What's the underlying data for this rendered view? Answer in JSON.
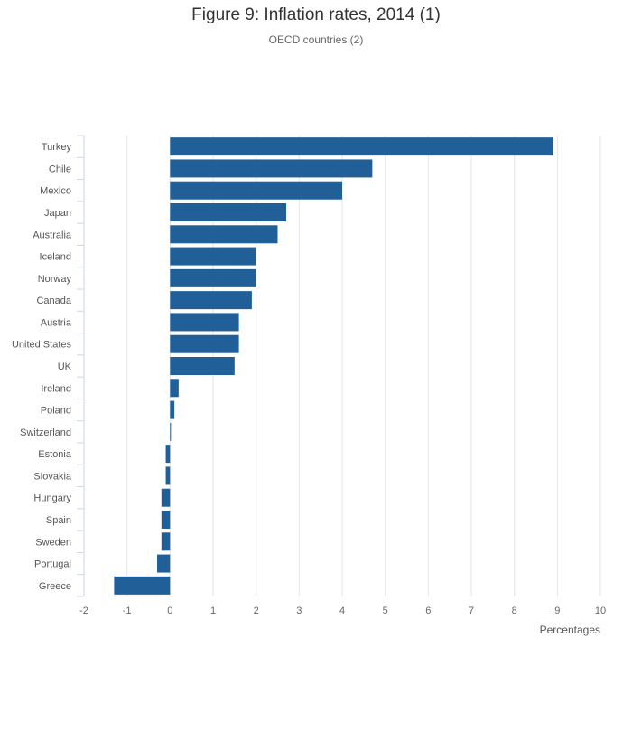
{
  "chart_data": {
    "type": "bar",
    "orientation": "horizontal",
    "title": "Figure 9: Inflation rates, 2014 (1)",
    "subtitle": "OECD countries (2)",
    "xlabel": "Percentages",
    "ylabel": "",
    "xlim": [
      -2,
      10
    ],
    "xticks": [
      -2,
      -1,
      0,
      1,
      2,
      3,
      4,
      5,
      6,
      7,
      8,
      9,
      10
    ],
    "grid": "vertical",
    "legend": "none",
    "bar_color": "#215f98",
    "categories": [
      "Turkey",
      "Chile",
      "Mexico",
      "Japan",
      "Australia",
      "Iceland",
      "Norway",
      "Canada",
      "Austria",
      "United States",
      "UK",
      "Ireland",
      "Poland",
      "Switzerland",
      "Estonia",
      "Slovakia",
      "Hungary",
      "Spain",
      "Sweden",
      "Portugal",
      "Greece"
    ],
    "values": [
      8.9,
      4.7,
      4.0,
      2.7,
      2.5,
      2.0,
      2.0,
      1.9,
      1.6,
      1.6,
      1.5,
      0.2,
      0.1,
      0.0,
      -0.1,
      -0.1,
      -0.2,
      -0.2,
      -0.2,
      -0.3,
      -1.3
    ]
  }
}
